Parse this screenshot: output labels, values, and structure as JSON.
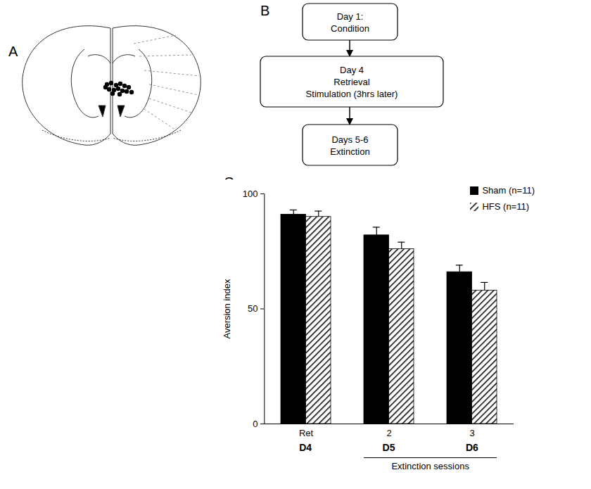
{
  "panel_labels": [
    "A",
    "B",
    "C"
  ],
  "flowchart": {
    "steps": [
      [
        "Day 1:",
        "Condition"
      ],
      [
        "Day 4",
        "Retrieval",
        "Stimulation (3hrs later)"
      ],
      [
        "Days 5-6",
        "Extinction"
      ]
    ]
  },
  "chart_data": {
    "type": "bar",
    "categories": [
      "Ret",
      "2",
      "3"
    ],
    "days": [
      "D4",
      "D5",
      "D6"
    ],
    "y_label": "Aversion index",
    "ylim": [
      0,
      100
    ],
    "yticks": [
      0,
      50,
      100
    ],
    "grid": false,
    "legend": "top-right",
    "series": [
      {
        "name": "Sham (n=11)",
        "color": "#000000",
        "values": [
          91,
          82,
          66
        ],
        "errors": [
          2,
          3.5,
          3
        ]
      },
      {
        "name": "HFS (n=11)",
        "color": "#000000",
        "values": [
          90,
          76,
          58
        ],
        "errors": [
          2.5,
          3,
          3.5
        ]
      }
    ],
    "annotations": [
      {
        "text": "Extinction sessions",
        "span": [
          "2",
          "3"
        ]
      }
    ]
  }
}
